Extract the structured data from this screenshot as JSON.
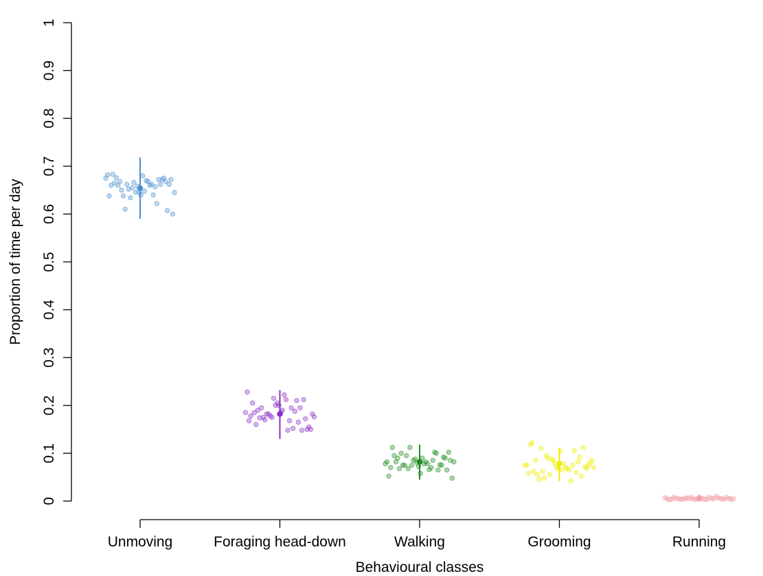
{
  "chart_data": {
    "type": "scatter",
    "xlabel": "Behavioural classes",
    "ylabel": "Proportion of time per day",
    "ylim": [
      0,
      1
    ],
    "yticks": [
      0,
      0.1,
      0.2,
      0.3,
      0.4,
      0.5,
      0.6,
      0.7,
      0.8,
      0.9,
      1
    ],
    "ytick_labels": [
      "0",
      "0.1",
      "0.2",
      "0.3",
      "0.4",
      "0.5",
      "0.6",
      "0.7",
      "0.8",
      "0.9",
      "1"
    ],
    "categories": [
      "Unmoving",
      "Foraging head-down",
      "Walking",
      "Grooming",
      "Running"
    ],
    "grid": false,
    "series": [
      {
        "category": "Unmoving",
        "color": "#4a8fcf",
        "mean": 0.654,
        "error_low": 0.59,
        "error_high": 0.718,
        "points": [
          0.675,
          0.672,
          0.668,
          0.662,
          0.657,
          0.66,
          0.648,
          0.645,
          0.666,
          0.652,
          0.638,
          0.66,
          0.683,
          0.682,
          0.6,
          0.607,
          0.672,
          0.622,
          0.662,
          0.67,
          0.64,
          0.646,
          0.634,
          0.61,
          0.668,
          0.665,
          0.638,
          0.645,
          0.662,
          0.675,
          0.672,
          0.64,
          0.668,
          0.68,
          0.658,
          0.655,
          0.662,
          0.65,
          0.676,
          0.66
        ]
      },
      {
        "category": "Foraging head-down",
        "color": "#8a2fc4",
        "mean": 0.182,
        "error_low": 0.13,
        "error_high": 0.232,
        "points": [
          0.17,
          0.174,
          0.185,
          0.168,
          0.176,
          0.155,
          0.212,
          0.165,
          0.152,
          0.148,
          0.19,
          0.205,
          0.175,
          0.182,
          0.195,
          0.16,
          0.178,
          0.185,
          0.15,
          0.172,
          0.195,
          0.188,
          0.168,
          0.222,
          0.2,
          0.215,
          0.182,
          0.175,
          0.19,
          0.205,
          0.228,
          0.182,
          0.15,
          0.148,
          0.21,
          0.195,
          0.212,
          0.185,
          0.2,
          0.178
        ]
      },
      {
        "category": "Walking",
        "color": "#1e8a1e",
        "mean": 0.082,
        "error_low": 0.045,
        "error_high": 0.118,
        "points": [
          0.078,
          0.072,
          0.085,
          0.068,
          0.075,
          0.09,
          0.112,
          0.082,
          0.048,
          0.065,
          0.075,
          0.1,
          0.07,
          0.082,
          0.058,
          0.088,
          0.112,
          0.075,
          0.068,
          0.095,
          0.052,
          0.082,
          0.102,
          0.092,
          0.065,
          0.085,
          0.078,
          0.09,
          0.08,
          0.075,
          0.095,
          0.1,
          0.082,
          0.07,
          0.078,
          0.085,
          0.09,
          0.076,
          0.102,
          0.066
        ]
      },
      {
        "category": "Grooming",
        "color": "#eded00",
        "mean": 0.078,
        "error_low": 0.042,
        "error_high": 0.112,
        "points": [
          0.112,
          0.082,
          0.075,
          0.068,
          0.065,
          0.07,
          0.088,
          0.095,
          0.11,
          0.085,
          0.118,
          0.075,
          0.08,
          0.072,
          0.092,
          0.105,
          0.065,
          0.078,
          0.068,
          0.085,
          0.09,
          0.062,
          0.055,
          0.122,
          0.075,
          0.085,
          0.068,
          0.052,
          0.06,
          0.042,
          0.07,
          0.105,
          0.078,
          0.055,
          0.048,
          0.045,
          0.062,
          0.058,
          0.07,
          0.075
        ]
      },
      {
        "category": "Running",
        "color": "#f4a3ad",
        "mean": 0.005,
        "error_low": 0.0,
        "error_high": 0.014,
        "points": [
          0.004,
          0.006,
          0.003,
          0.008,
          0.005,
          0.01,
          0.006,
          0.004,
          0.007,
          0.003,
          0.005,
          0.006,
          0.004,
          0.008,
          0.003,
          0.005,
          0.006,
          0.004,
          0.007,
          0.005,
          0.003,
          0.006,
          0.004,
          0.008,
          0.005,
          0.004,
          0.006,
          0.003,
          0.007,
          0.005,
          0.004,
          0.006,
          0.005,
          0.008,
          0.004,
          0.006,
          0.005,
          0.007,
          0.004,
          0.006
        ]
      }
    ]
  }
}
